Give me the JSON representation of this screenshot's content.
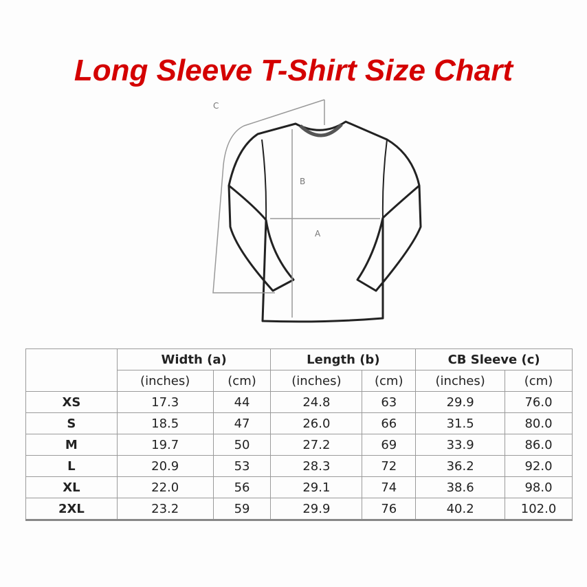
{
  "title": "Long Sleeve T-Shirt Size Chart",
  "title_color": "#d40000",
  "diagram_labels": {
    "a": "A",
    "b": "B",
    "c": "C"
  },
  "table": {
    "groups": [
      "Width (a)",
      "Length (b)",
      "CB Sleeve (c)"
    ],
    "units": [
      "(inches)",
      "(cm)",
      "(inches)",
      "(cm)",
      "(inches)",
      "(cm)"
    ],
    "rows": [
      {
        "size": "XS",
        "values": [
          "17.3",
          "44",
          "24.8",
          "63",
          "29.9",
          "76.0"
        ]
      },
      {
        "size": "S",
        "values": [
          "18.5",
          "47",
          "26.0",
          "66",
          "31.5",
          "80.0"
        ]
      },
      {
        "size": "M",
        "values": [
          "19.7",
          "50",
          "27.2",
          "69",
          "33.9",
          "86.0"
        ]
      },
      {
        "size": "L",
        "values": [
          "20.9",
          "53",
          "28.3",
          "72",
          "36.2",
          "92.0"
        ]
      },
      {
        "size": "XL",
        "values": [
          "22.0",
          "56",
          "29.1",
          "74",
          "38.6",
          "98.0"
        ]
      },
      {
        "size": "2XL",
        "values": [
          "23.2",
          "59",
          "29.9",
          "76",
          "40.2",
          "102.0"
        ]
      }
    ]
  }
}
